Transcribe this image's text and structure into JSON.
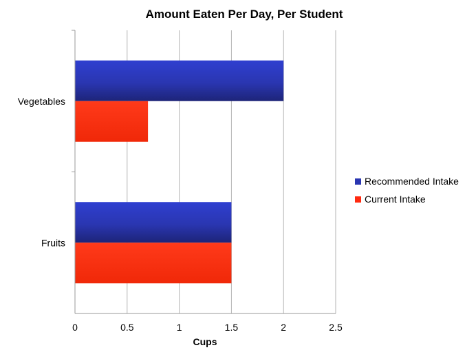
{
  "chart_data": {
    "type": "bar",
    "orientation": "horizontal",
    "title": "Amount Eaten Per Day, Per Student",
    "xlabel": "Cups",
    "ylabel": "",
    "xlim": [
      0,
      2.5
    ],
    "xticks": [
      "0",
      "0.5",
      "1",
      "1.5",
      "2",
      "2.5"
    ],
    "categories": [
      "Vegetables",
      "Fruits"
    ],
    "series": [
      {
        "name": "Recommended Intake",
        "values": [
          2,
          1.5
        ],
        "color": "#2a36b1"
      },
      {
        "name": "Current Intake",
        "values": [
          0.7,
          1.5
        ],
        "color": "#ff2a10"
      }
    ],
    "grid": true,
    "legend": "right"
  }
}
